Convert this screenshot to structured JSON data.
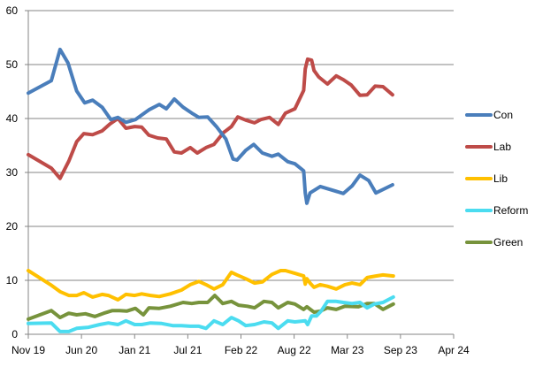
{
  "chart_data": {
    "type": "line",
    "title": "",
    "xlabel": "",
    "ylabel": "",
    "x_unit": "months since Nov 2019",
    "xlim": [
      0,
      53.6
    ],
    "ylim": [
      0,
      60
    ],
    "y_ticks": [
      0,
      10,
      20,
      30,
      40,
      50,
      60
    ],
    "x_tick_labels": [
      "Nov 19",
      "Jun 20",
      "Jan 21",
      "Jul 21",
      "Feb 22",
      "Aug 22",
      "Mar 23",
      "Sep 23",
      "Apr 24"
    ],
    "grid": "horizontal",
    "legend_position": "right",
    "series": [
      {
        "name": "Con",
        "color": "#4A7EBB",
        "points": [
          [
            0,
            44.7
          ],
          [
            2.9,
            47.0
          ],
          [
            4.0,
            52.8
          ],
          [
            5.0,
            50.3
          ],
          [
            6.1,
            45.1
          ],
          [
            7.1,
            42.9
          ],
          [
            8.1,
            43.4
          ],
          [
            9.3,
            42.1
          ],
          [
            10.4,
            39.8
          ],
          [
            11.3,
            40.2
          ],
          [
            12.3,
            39.3
          ],
          [
            13.5,
            39.8
          ],
          [
            15.2,
            41.6
          ],
          [
            16.5,
            42.6
          ],
          [
            17.4,
            41.8
          ],
          [
            18.4,
            43.6
          ],
          [
            19.5,
            42.1
          ],
          [
            20.6,
            41.0
          ],
          [
            21.5,
            40.2
          ],
          [
            22.6,
            40.3
          ],
          [
            23.7,
            38.5
          ],
          [
            24.9,
            36.2
          ],
          [
            25.8,
            32.5
          ],
          [
            26.3,
            32.3
          ],
          [
            27.4,
            34.1
          ],
          [
            28.4,
            35.2
          ],
          [
            29.5,
            33.6
          ],
          [
            30.7,
            33.0
          ],
          [
            31.5,
            33.4
          ],
          [
            32.7,
            32.0
          ],
          [
            33.6,
            31.6
          ],
          [
            34.7,
            30.3
          ],
          [
            34.9,
            26.2
          ],
          [
            35.1,
            24.3
          ],
          [
            35.5,
            26.2
          ],
          [
            36.8,
            27.4
          ],
          [
            39.7,
            26.1
          ],
          [
            40.8,
            27.5
          ],
          [
            41.8,
            29.5
          ],
          [
            42.9,
            28.5
          ],
          [
            43.8,
            26.2
          ],
          [
            45.9,
            27.7
          ]
        ]
      },
      {
        "name": "Lab",
        "color": "#BE4B48",
        "points": [
          [
            0,
            33.3
          ],
          [
            2.9,
            30.8
          ],
          [
            4.0,
            28.9
          ],
          [
            5.1,
            32.1
          ],
          [
            6.1,
            35.7
          ],
          [
            7.0,
            37.2
          ],
          [
            8.1,
            37.0
          ],
          [
            9.3,
            37.7
          ],
          [
            10.3,
            39.0
          ],
          [
            11.3,
            40.0
          ],
          [
            12.3,
            38.2
          ],
          [
            13.4,
            38.5
          ],
          [
            14.3,
            38.4
          ],
          [
            15.2,
            36.9
          ],
          [
            16.3,
            36.4
          ],
          [
            17.4,
            36.2
          ],
          [
            18.4,
            33.8
          ],
          [
            19.3,
            33.6
          ],
          [
            20.4,
            34.6
          ],
          [
            21.3,
            33.6
          ],
          [
            22.4,
            34.6
          ],
          [
            23.4,
            35.2
          ],
          [
            24.6,
            37.4
          ],
          [
            25.6,
            38.5
          ],
          [
            26.4,
            40.3
          ],
          [
            27.4,
            39.7
          ],
          [
            28.5,
            39.2
          ],
          [
            29.3,
            39.8
          ],
          [
            30.4,
            40.2
          ],
          [
            31.5,
            38.9
          ],
          [
            32.4,
            41.0
          ],
          [
            33.6,
            41.8
          ],
          [
            34.7,
            45.2
          ],
          [
            34.9,
            49.2
          ],
          [
            35.2,
            51.0
          ],
          [
            35.7,
            50.8
          ],
          [
            36.0,
            48.9
          ],
          [
            36.6,
            47.7
          ],
          [
            37.7,
            46.4
          ],
          [
            38.8,
            47.9
          ],
          [
            39.7,
            47.2
          ],
          [
            40.7,
            46.2
          ],
          [
            41.8,
            44.3
          ],
          [
            42.7,
            44.4
          ],
          [
            43.7,
            46.0
          ],
          [
            44.7,
            45.9
          ],
          [
            45.9,
            44.4
          ]
        ]
      },
      {
        "name": "Lib",
        "color": "#FFC000",
        "points": [
          [
            0,
            11.8
          ],
          [
            2.8,
            9.2
          ],
          [
            4.0,
            7.9
          ],
          [
            5.1,
            7.2
          ],
          [
            6.1,
            7.2
          ],
          [
            7.0,
            7.7
          ],
          [
            8.1,
            6.9
          ],
          [
            9.3,
            7.4
          ],
          [
            10.1,
            7.2
          ],
          [
            11.3,
            6.4
          ],
          [
            12.3,
            7.4
          ],
          [
            13.4,
            7.2
          ],
          [
            14.3,
            7.5
          ],
          [
            15.4,
            7.2
          ],
          [
            16.5,
            7.0
          ],
          [
            17.9,
            7.5
          ],
          [
            19.3,
            8.2
          ],
          [
            20.4,
            9.2
          ],
          [
            21.5,
            9.8
          ],
          [
            22.4,
            9.2
          ],
          [
            23.4,
            8.4
          ],
          [
            24.5,
            9.2
          ],
          [
            25.6,
            11.5
          ],
          [
            26.3,
            11.0
          ],
          [
            27.4,
            10.3
          ],
          [
            28.5,
            9.5
          ],
          [
            29.5,
            9.7
          ],
          [
            30.7,
            11.1
          ],
          [
            31.8,
            11.8
          ],
          [
            32.4,
            11.8
          ],
          [
            33.6,
            11.3
          ],
          [
            34.7,
            10.8
          ],
          [
            34.9,
            9.3
          ],
          [
            35.1,
            10.3
          ],
          [
            35.5,
            9.5
          ],
          [
            36.0,
            8.7
          ],
          [
            36.8,
            9.2
          ],
          [
            37.7,
            8.9
          ],
          [
            38.8,
            8.4
          ],
          [
            39.9,
            9.2
          ],
          [
            40.8,
            9.5
          ],
          [
            41.8,
            9.2
          ],
          [
            42.7,
            10.5
          ],
          [
            43.8,
            10.8
          ],
          [
            44.7,
            11.0
          ],
          [
            46.0,
            10.8
          ]
        ]
      },
      {
        "name": "Reform",
        "color": "#4BDCF0",
        "points": [
          [
            0,
            2.0
          ],
          [
            2.9,
            2.1
          ],
          [
            4.0,
            0.5
          ],
          [
            5.1,
            0.5
          ],
          [
            6.1,
            1.1
          ],
          [
            7.6,
            1.3
          ],
          [
            9.0,
            1.8
          ],
          [
            10.1,
            2.1
          ],
          [
            11.3,
            1.8
          ],
          [
            12.3,
            2.5
          ],
          [
            13.4,
            1.8
          ],
          [
            14.3,
            1.8
          ],
          [
            15.4,
            2.1
          ],
          [
            16.8,
            2.0
          ],
          [
            18.2,
            1.6
          ],
          [
            19.3,
            1.6
          ],
          [
            20.4,
            1.5
          ],
          [
            21.5,
            1.5
          ],
          [
            22.4,
            1.1
          ],
          [
            23.4,
            2.5
          ],
          [
            24.5,
            1.8
          ],
          [
            25.6,
            3.1
          ],
          [
            26.5,
            2.5
          ],
          [
            27.4,
            1.6
          ],
          [
            28.5,
            1.8
          ],
          [
            29.7,
            2.3
          ],
          [
            30.7,
            2.1
          ],
          [
            31.5,
            1.1
          ],
          [
            32.7,
            2.5
          ],
          [
            33.6,
            2.3
          ],
          [
            34.9,
            2.5
          ],
          [
            35.2,
            1.8
          ],
          [
            35.7,
            3.4
          ],
          [
            36.3,
            3.4
          ],
          [
            36.9,
            4.3
          ],
          [
            37.7,
            6.1
          ],
          [
            38.8,
            6.1
          ],
          [
            39.7,
            5.9
          ],
          [
            40.8,
            5.7
          ],
          [
            41.8,
            5.9
          ],
          [
            42.7,
            4.9
          ],
          [
            43.6,
            5.6
          ],
          [
            44.7,
            5.9
          ],
          [
            46.0,
            6.9
          ]
        ]
      },
      {
        "name": "Green",
        "color": "#77933C",
        "points": [
          [
            0,
            2.8
          ],
          [
            2.9,
            4.4
          ],
          [
            4.0,
            3.1
          ],
          [
            5.1,
            3.9
          ],
          [
            6.1,
            3.6
          ],
          [
            7.2,
            3.8
          ],
          [
            8.4,
            3.3
          ],
          [
            9.5,
            3.9
          ],
          [
            10.6,
            4.4
          ],
          [
            11.5,
            4.4
          ],
          [
            12.4,
            4.3
          ],
          [
            13.5,
            4.8
          ],
          [
            14.5,
            3.6
          ],
          [
            15.2,
            4.9
          ],
          [
            16.5,
            4.8
          ],
          [
            17.9,
            5.2
          ],
          [
            19.5,
            5.9
          ],
          [
            20.6,
            5.7
          ],
          [
            21.5,
            5.9
          ],
          [
            22.6,
            5.9
          ],
          [
            23.5,
            7.2
          ],
          [
            24.5,
            5.7
          ],
          [
            25.6,
            6.1
          ],
          [
            26.5,
            5.4
          ],
          [
            27.6,
            5.2
          ],
          [
            28.5,
            4.9
          ],
          [
            29.7,
            6.1
          ],
          [
            30.7,
            5.9
          ],
          [
            31.5,
            4.9
          ],
          [
            32.7,
            5.9
          ],
          [
            33.6,
            5.6
          ],
          [
            34.7,
            4.6
          ],
          [
            35.1,
            5.1
          ],
          [
            36.0,
            4.1
          ],
          [
            36.8,
            4.3
          ],
          [
            37.7,
            4.9
          ],
          [
            38.8,
            4.6
          ],
          [
            39.9,
            5.2
          ],
          [
            41.6,
            5.1
          ],
          [
            42.7,
            5.7
          ],
          [
            43.6,
            5.7
          ],
          [
            44.7,
            4.6
          ],
          [
            46.0,
            5.6
          ]
        ]
      }
    ]
  }
}
